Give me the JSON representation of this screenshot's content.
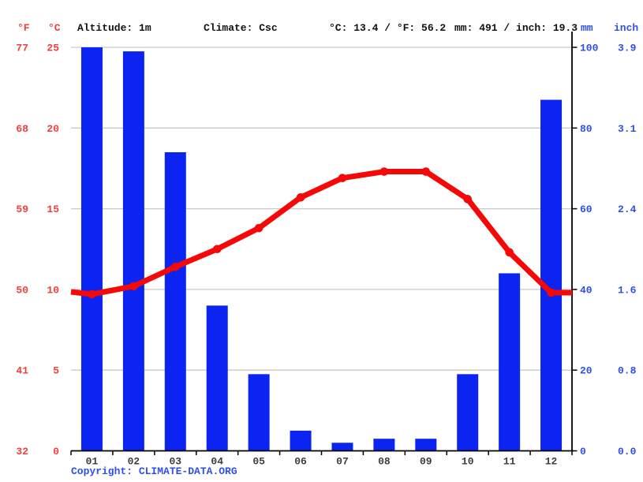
{
  "header": {
    "deg_f_label": "°F",
    "deg_c_label": "°C",
    "altitude": "Altitude: 1m",
    "climate": "Climate: Csc",
    "temp_summary": "°C: 13.4 / °F: 56.2",
    "precip_summary": "mm: 491 / inch: 19.3",
    "mm_label": "mm",
    "inch_label": "inch"
  },
  "footer": {
    "copyright_label": "Copyright: ",
    "copyright_link": "CLIMATE-DATA.ORG"
  },
  "colors": {
    "bar_blue": "#0b24f2",
    "label_blue": "#2e50e8",
    "line_red": "#f50808",
    "label_red": "#f23d3d",
    "grid_gray": "#c9c9c9",
    "axis_black": "#000000",
    "month_gray": "#3d3d3d"
  },
  "chart_data": {
    "type": "bar",
    "subtype": "climograph: precipitation bars + temperature line",
    "categories": [
      "01",
      "02",
      "03",
      "04",
      "05",
      "06",
      "07",
      "08",
      "09",
      "10",
      "11",
      "12"
    ],
    "series": [
      {
        "name": "Precipitation (mm)",
        "type": "bar",
        "values": [
          100,
          99,
          74,
          36,
          19,
          5,
          2,
          3,
          3,
          19,
          44,
          87
        ]
      },
      {
        "name": "Temperature (°C)",
        "type": "line",
        "values": [
          9.7,
          10.2,
          11.4,
          12.5,
          13.8,
          15.7,
          16.9,
          17.3,
          17.3,
          15.6,
          12.3,
          9.8
        ],
        "edge_values": [
          9.85,
          9.8
        ]
      }
    ],
    "title": "",
    "xlabel": "",
    "ylabel_left": "Temperature °F / °C",
    "ylabel_right": "Precipitation mm / inch",
    "left_axis_f": [
      "77",
      "68",
      "59",
      "50",
      "41",
      "32"
    ],
    "left_axis_c": [
      "25",
      "20",
      "15",
      "10",
      "5",
      "0"
    ],
    "right_axis_mm": [
      "100",
      "80",
      "60",
      "40",
      "20",
      "0"
    ],
    "right_axis_inch": [
      "3.9",
      "3.1",
      "2.4",
      "1.6",
      "0.8",
      "0.0"
    ],
    "temp_axis_range_c": [
      0,
      25
    ],
    "precip_axis_range_mm": [
      0,
      100
    ],
    "grid": true,
    "annual_mean_temp_c": 13.4,
    "annual_mean_temp_f": 56.2,
    "annual_precip_mm": 491,
    "annual_precip_inch": 19.3
  }
}
